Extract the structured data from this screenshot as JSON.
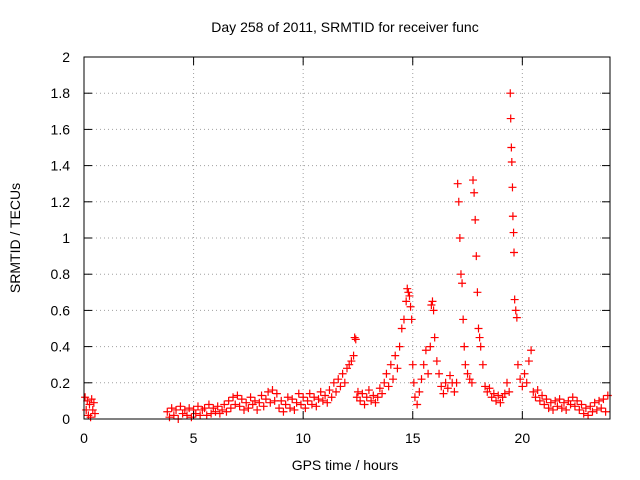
{
  "chart_data": {
    "type": "scatter",
    "title": "Day 258 of 2011, SRMTID for receiver func",
    "xlabel": "GPS time / hours",
    "ylabel": "SRMTID / TECUs",
    "xlim": [
      0,
      24
    ],
    "ylim": [
      0,
      2
    ],
    "xticks": [
      0,
      5,
      10,
      15,
      20
    ],
    "yticks": [
      0,
      0.2,
      0.4,
      0.6,
      0.8,
      1,
      1.2,
      1.4,
      1.6,
      1.8,
      2
    ],
    "grid": true,
    "marker": "+",
    "marker_color": "#ff0000",
    "grid_color": "#a0a0a0",
    "series": [
      {
        "name": "SRMTID",
        "points": [
          [
            0.05,
            0.12
          ],
          [
            0.1,
            0.05
          ],
          [
            0.15,
            0.1
          ],
          [
            0.2,
            0.02
          ],
          [
            0.25,
            0.08
          ],
          [
            0.3,
            0.01
          ],
          [
            0.35,
            0.11
          ],
          [
            0.4,
            0.05
          ],
          [
            0.45,
            0.09
          ],
          [
            0.5,
            0.03
          ],
          [
            3.8,
            0.04
          ],
          [
            3.9,
            0.01
          ],
          [
            4.0,
            0.06
          ],
          [
            4.1,
            0.02
          ],
          [
            4.2,
            0.05
          ],
          [
            4.3,
            0.0
          ],
          [
            4.4,
            0.07
          ],
          [
            4.5,
            0.03
          ],
          [
            4.6,
            0.05
          ],
          [
            4.7,
            0.02
          ],
          [
            4.8,
            0.06
          ],
          [
            4.9,
            0.01
          ],
          [
            5.0,
            0.05
          ],
          [
            5.1,
            0.03
          ],
          [
            5.2,
            0.07
          ],
          [
            5.3,
            0.02
          ],
          [
            5.4,
            0.05
          ],
          [
            5.5,
            0.06
          ],
          [
            5.6,
            0.02
          ],
          [
            5.7,
            0.08
          ],
          [
            5.8,
            0.03
          ],
          [
            5.9,
            0.06
          ],
          [
            6.0,
            0.04
          ],
          [
            6.1,
            0.07
          ],
          [
            6.2,
            0.03
          ],
          [
            6.3,
            0.05
          ],
          [
            6.4,
            0.08
          ],
          [
            6.5,
            0.04
          ],
          [
            6.6,
            0.1
          ],
          [
            6.7,
            0.06
          ],
          [
            6.8,
            0.12
          ],
          [
            6.9,
            0.08
          ],
          [
            7.0,
            0.13
          ],
          [
            7.1,
            0.07
          ],
          [
            7.2,
            0.11
          ],
          [
            7.3,
            0.05
          ],
          [
            7.4,
            0.09
          ],
          [
            7.5,
            0.06
          ],
          [
            7.6,
            0.12
          ],
          [
            7.7,
            0.08
          ],
          [
            7.8,
            0.1
          ],
          [
            7.9,
            0.05
          ],
          [
            8.0,
            0.09
          ],
          [
            8.1,
            0.13
          ],
          [
            8.2,
            0.07
          ],
          [
            8.3,
            0.11
          ],
          [
            8.4,
            0.15
          ],
          [
            8.5,
            0.09
          ],
          [
            8.6,
            0.16
          ],
          [
            8.7,
            0.1
          ],
          [
            8.8,
            0.14
          ],
          [
            8.9,
            0.06
          ],
          [
            9.0,
            0.1
          ],
          [
            9.1,
            0.04
          ],
          [
            9.2,
            0.08
          ],
          [
            9.3,
            0.12
          ],
          [
            9.4,
            0.06
          ],
          [
            9.5,
            0.11
          ],
          [
            9.6,
            0.05
          ],
          [
            9.7,
            0.09
          ],
          [
            9.8,
            0.14
          ],
          [
            9.9,
            0.08
          ],
          [
            10.0,
            0.12
          ],
          [
            10.1,
            0.06
          ],
          [
            10.2,
            0.1
          ],
          [
            10.3,
            0.14
          ],
          [
            10.4,
            0.08
          ],
          [
            10.5,
            0.12
          ],
          [
            10.6,
            0.07
          ],
          [
            10.7,
            0.11
          ],
          [
            10.8,
            0.15
          ],
          [
            10.9,
            0.1
          ],
          [
            11.0,
            0.13
          ],
          [
            11.1,
            0.09
          ],
          [
            11.2,
            0.16
          ],
          [
            11.3,
            0.12
          ],
          [
            11.4,
            0.2
          ],
          [
            11.5,
            0.15
          ],
          [
            11.6,
            0.22
          ],
          [
            11.7,
            0.18
          ],
          [
            11.8,
            0.25
          ],
          [
            11.9,
            0.2
          ],
          [
            12.0,
            0.28
          ],
          [
            12.1,
            0.3
          ],
          [
            12.2,
            0.32
          ],
          [
            12.3,
            0.35
          ],
          [
            12.35,
            0.45
          ],
          [
            12.4,
            0.44
          ],
          [
            12.45,
            0.12
          ],
          [
            12.5,
            0.15
          ],
          [
            12.6,
            0.1
          ],
          [
            12.7,
            0.14
          ],
          [
            12.8,
            0.08
          ],
          [
            12.9,
            0.12
          ],
          [
            13.0,
            0.16
          ],
          [
            13.1,
            0.1
          ],
          [
            13.2,
            0.13
          ],
          [
            13.3,
            0.09
          ],
          [
            13.4,
            0.12
          ],
          [
            13.5,
            0.17
          ],
          [
            13.6,
            0.14
          ],
          [
            13.7,
            0.2
          ],
          [
            13.8,
            0.25
          ],
          [
            13.9,
            0.18
          ],
          [
            14.0,
            0.3
          ],
          [
            14.1,
            0.22
          ],
          [
            14.2,
            0.35
          ],
          [
            14.3,
            0.28
          ],
          [
            14.4,
            0.4
          ],
          [
            14.5,
            0.5
          ],
          [
            14.6,
            0.55
          ],
          [
            14.7,
            0.65
          ],
          [
            14.75,
            0.72
          ],
          [
            14.8,
            0.7
          ],
          [
            14.85,
            0.68
          ],
          [
            14.9,
            0.62
          ],
          [
            14.95,
            0.55
          ],
          [
            15.0,
            0.3
          ],
          [
            15.05,
            0.2
          ],
          [
            15.1,
            0.12
          ],
          [
            15.2,
            0.08
          ],
          [
            15.3,
            0.15
          ],
          [
            15.4,
            0.22
          ],
          [
            15.5,
            0.3
          ],
          [
            15.6,
            0.38
          ],
          [
            15.7,
            0.25
          ],
          [
            15.8,
            0.4
          ],
          [
            15.85,
            0.63
          ],
          [
            15.9,
            0.65
          ],
          [
            15.95,
            0.6
          ],
          [
            16.0,
            0.45
          ],
          [
            16.1,
            0.32
          ],
          [
            16.2,
            0.25
          ],
          [
            16.3,
            0.18
          ],
          [
            16.4,
            0.14
          ],
          [
            16.5,
            0.2
          ],
          [
            16.6,
            0.17
          ],
          [
            16.7,
            0.24
          ],
          [
            16.8,
            0.2
          ],
          [
            16.9,
            0.15
          ],
          [
            17.0,
            0.2
          ],
          [
            17.05,
            1.3
          ],
          [
            17.1,
            1.2
          ],
          [
            17.15,
            1.0
          ],
          [
            17.2,
            0.8
          ],
          [
            17.25,
            0.75
          ],
          [
            17.3,
            0.55
          ],
          [
            17.35,
            0.4
          ],
          [
            17.4,
            0.3
          ],
          [
            17.5,
            0.25
          ],
          [
            17.6,
            0.22
          ],
          [
            17.7,
            0.2
          ],
          [
            17.75,
            1.32
          ],
          [
            17.8,
            1.25
          ],
          [
            17.85,
            1.1
          ],
          [
            17.9,
            0.9
          ],
          [
            17.95,
            0.7
          ],
          [
            18.0,
            0.5
          ],
          [
            18.05,
            0.45
          ],
          [
            18.1,
            0.4
          ],
          [
            18.2,
            0.3
          ],
          [
            18.3,
            0.18
          ],
          [
            18.4,
            0.15
          ],
          [
            18.5,
            0.17
          ],
          [
            18.6,
            0.12
          ],
          [
            18.7,
            0.14
          ],
          [
            18.8,
            0.1
          ],
          [
            18.9,
            0.13
          ],
          [
            19.0,
            0.09
          ],
          [
            19.1,
            0.12
          ],
          [
            19.2,
            0.14
          ],
          [
            19.3,
            0.2
          ],
          [
            19.4,
            0.15
          ],
          [
            19.45,
            1.8
          ],
          [
            19.47,
            1.66
          ],
          [
            19.5,
            1.5
          ],
          [
            19.52,
            1.42
          ],
          [
            19.55,
            1.28
          ],
          [
            19.57,
            1.12
          ],
          [
            19.6,
            1.03
          ],
          [
            19.62,
            0.92
          ],
          [
            19.65,
            0.66
          ],
          [
            19.7,
            0.6
          ],
          [
            19.75,
            0.56
          ],
          [
            19.8,
            0.3
          ],
          [
            19.9,
            0.22
          ],
          [
            20.0,
            0.18
          ],
          [
            20.1,
            0.25
          ],
          [
            20.2,
            0.2
          ],
          [
            20.3,
            0.32
          ],
          [
            20.4,
            0.38
          ],
          [
            20.5,
            0.15
          ],
          [
            20.6,
            0.12
          ],
          [
            20.7,
            0.16
          ],
          [
            20.8,
            0.1
          ],
          [
            20.9,
            0.13
          ],
          [
            21.0,
            0.08
          ],
          [
            21.1,
            0.11
          ],
          [
            21.2,
            0.06
          ],
          [
            21.3,
            0.09
          ],
          [
            21.4,
            0.05
          ],
          [
            21.5,
            0.1
          ],
          [
            21.6,
            0.07
          ],
          [
            21.7,
            0.11
          ],
          [
            21.8,
            0.06
          ],
          [
            21.9,
            0.09
          ],
          [
            22.0,
            0.05
          ],
          [
            22.1,
            0.1
          ],
          [
            22.2,
            0.08
          ],
          [
            22.3,
            0.12
          ],
          [
            22.4,
            0.07
          ],
          [
            22.5,
            0.1
          ],
          [
            22.6,
            0.05
          ],
          [
            22.7,
            0.08
          ],
          [
            22.8,
            0.03
          ],
          [
            22.9,
            0.06
          ],
          [
            23.0,
            0.02
          ],
          [
            23.1,
            0.07
          ],
          [
            23.2,
            0.04
          ],
          [
            23.3,
            0.09
          ],
          [
            23.4,
            0.05
          ],
          [
            23.5,
            0.1
          ],
          [
            23.6,
            0.06
          ],
          [
            23.7,
            0.11
          ],
          [
            23.8,
            0.04
          ],
          [
            23.9,
            0.13
          ]
        ]
      }
    ]
  }
}
